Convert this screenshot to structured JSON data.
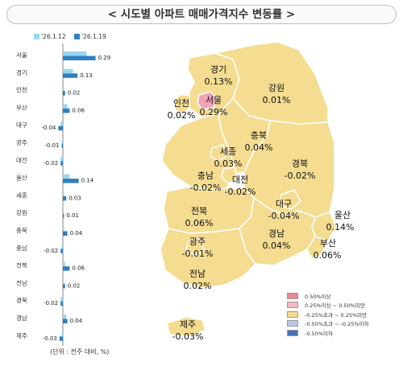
{
  "title": "< 시도별 아파트 매매가격지수 변동률 >",
  "legend": [
    {
      "label": "'26.1.12",
      "color": "#9ad6ee"
    },
    {
      "label": "'26.1.19",
      "color": "#2f7fc1"
    }
  ],
  "unit_note": "(단위 : 전주 대비, %)",
  "colors": {
    "prev_bar": "#9ad6ee",
    "curr_bar": "#2f7fc1",
    "map_fill": "#f4dc91",
    "map_seoul": "#f0a6b8",
    "map_stroke": "#ffffff"
  },
  "chart_data": [
    {
      "type": "bar",
      "orientation": "horizontal",
      "categories": [
        "서울",
        "경기",
        "인천",
        "부산",
        "대구",
        "광주",
        "대전",
        "울산",
        "세종",
        "강원",
        "충북",
        "충남",
        "전북",
        "전남",
        "경북",
        "경남",
        "제주"
      ],
      "series": [
        {
          "name": "'26.1.12",
          "values": [
            0.21,
            0.09,
            0.01,
            0.04,
            -0.02,
            -0.01,
            -0.02,
            0.06,
            0.01,
            0.0,
            0.01,
            -0.01,
            0.02,
            0.0,
            -0.02,
            0.03,
            -0.01
          ]
        },
        {
          "name": "'26.1.19",
          "values": [
            0.29,
            0.13,
            0.02,
            0.06,
            -0.04,
            -0.01,
            -0.02,
            0.14,
            0.03,
            0.01,
            0.04,
            -0.02,
            0.06,
            0.02,
            -0.02,
            0.04,
            -0.03
          ]
        }
      ],
      "value_labels": [
        "0.29",
        "0.13",
        "0.02",
        "0.06",
        "-0.04",
        "-0.01",
        "-0.02",
        "0.14",
        "0.03",
        "0.01",
        "0.04",
        "-0.02",
        "0.06",
        "0.02",
        "-0.02",
        "0.04",
        "-0.03"
      ],
      "xlim": [
        -0.06,
        0.32
      ]
    },
    {
      "type": "map",
      "regions": [
        {
          "name": "경기",
          "value": "0.13%",
          "class": "-0.25%초과 ~ 0.25%미만"
        },
        {
          "name": "강원",
          "value": "0.01%",
          "class": "-0.25%초과 ~ 0.25%미만"
        },
        {
          "name": "인천",
          "value": "0.02%",
          "class": "-0.25%초과 ~ 0.25%미만"
        },
        {
          "name": "서울",
          "value": "0.29%",
          "class": "0.25%이상 ~ 0.50%미만"
        },
        {
          "name": "충북",
          "value": "0.04%",
          "class": "-0.25%초과 ~ 0.25%미만"
        },
        {
          "name": "세종",
          "value": "0.03%",
          "class": "-0.25%초과 ~ 0.25%미만"
        },
        {
          "name": "충남",
          "value": "-0.02%",
          "class": "-0.25%초과 ~ 0.25%미만"
        },
        {
          "name": "대전",
          "value": "-0.02%",
          "class": "-0.25%초과 ~ 0.25%미만"
        },
        {
          "name": "경북",
          "value": "-0.02%",
          "class": "-0.25%초과 ~ 0.25%미만"
        },
        {
          "name": "전북",
          "value": "0.06%",
          "class": "-0.25%초과 ~ 0.25%미만"
        },
        {
          "name": "대구",
          "value": "-0.04%",
          "class": "-0.25%초과 ~ 0.25%미만"
        },
        {
          "name": "울산",
          "value": "0.14%",
          "class": "-0.25%초과 ~ 0.25%미만"
        },
        {
          "name": "광주",
          "value": "-0.01%",
          "class": "-0.25%초과 ~ 0.25%미만"
        },
        {
          "name": "경남",
          "value": "0.04%",
          "class": "-0.25%초과 ~ 0.25%미만"
        },
        {
          "name": "부산",
          "value": "0.06%",
          "class": "-0.25%초과 ~ 0.25%미만"
        },
        {
          "name": "전남",
          "value": "0.02%",
          "class": "-0.25%초과 ~ 0.25%미만"
        },
        {
          "name": "제주",
          "value": "-0.03%",
          "class": "-0.25%초과 ~ 0.25%미만"
        }
      ],
      "legend": [
        {
          "label": "0.50%이상",
          "color": "#e88a8f"
        },
        {
          "label": "0.25%이상 ~ 0.50%미만",
          "color": "#f4b6c2"
        },
        {
          "label": "-0.25%초과 ~ 0.25%미만",
          "color": "#f4dc91"
        },
        {
          "label": "-0.50%초과 ~ -0.25%이하",
          "color": "#b9cbe4"
        },
        {
          "label": "-0.50%이하",
          "color": "#4a6fb5"
        }
      ]
    }
  ]
}
